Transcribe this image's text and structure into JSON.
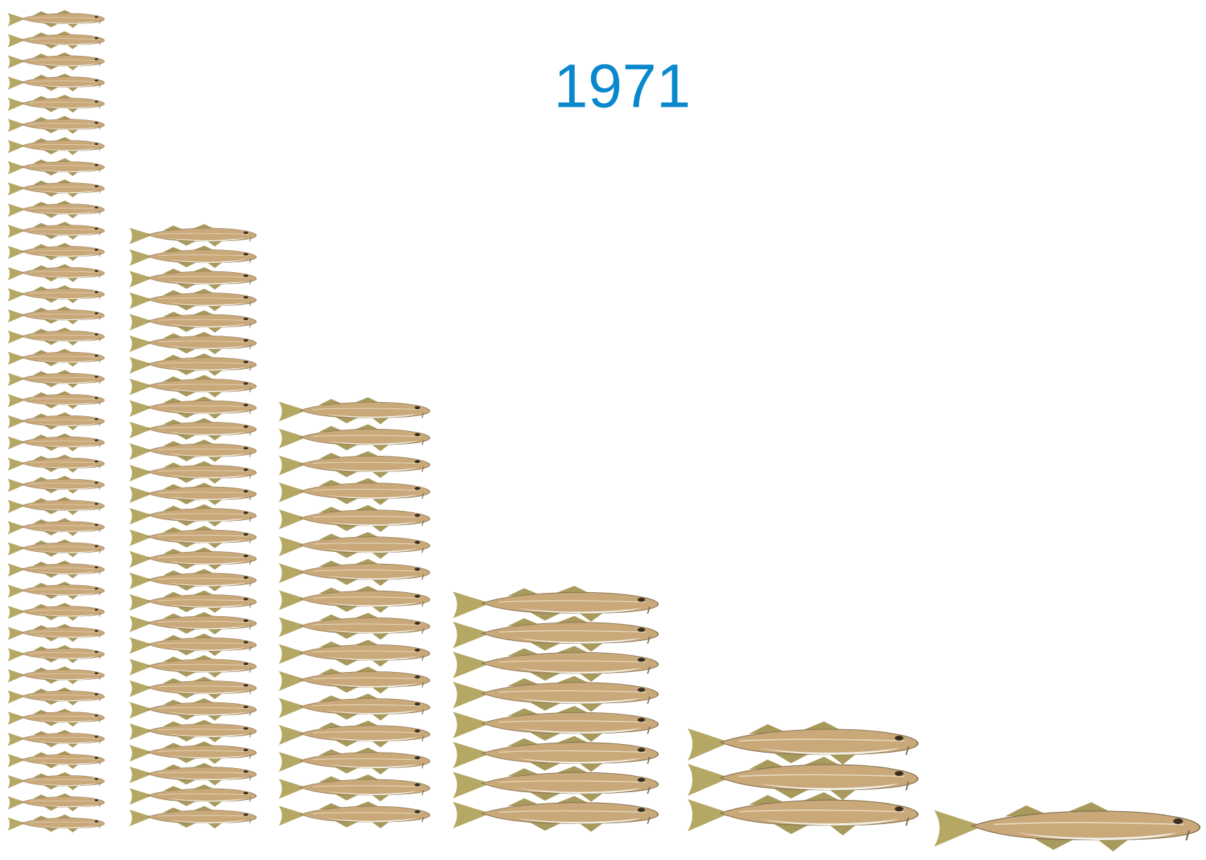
{
  "chart_data": {
    "type": "pictograph",
    "title": "1971",
    "values": [
      39,
      28,
      16,
      8,
      3,
      1
    ],
    "color": "#c9a87a"
  }
}
